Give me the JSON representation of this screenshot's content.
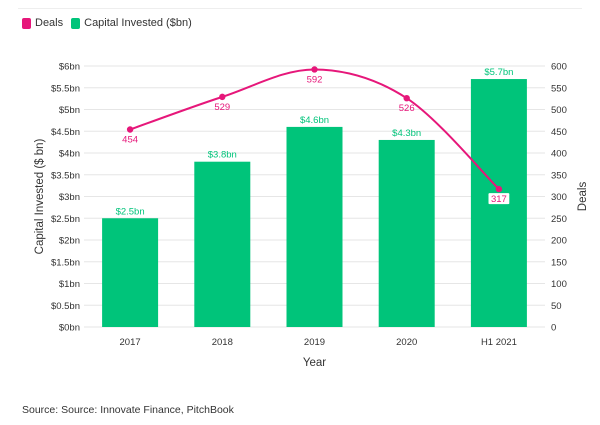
{
  "legend": {
    "deals_label": "Deals",
    "capital_label": "Capital Invested ($bn)"
  },
  "colors": {
    "deals": "#e6177a",
    "capital": "#00c47a",
    "grid": "#e6e6e6",
    "axis_text": "#333333"
  },
  "source": "Source: Source: Innovate Finance, PitchBook",
  "chart_data": {
    "type": "bar",
    "categories": [
      "2017",
      "2018",
      "2019",
      "2020",
      "H1 2021"
    ],
    "xlabel": "Year",
    "series": [
      {
        "name": "Capital Invested ($bn)",
        "type": "bar",
        "axis": "left",
        "values": [
          2.5,
          3.8,
          4.6,
          4.3,
          5.7
        ],
        "labels": [
          "$2.5bn",
          "$3.8bn",
          "$4.6bn",
          "$4.3bn",
          "$5.7bn"
        ]
      },
      {
        "name": "Deals",
        "type": "line",
        "axis": "right",
        "values": [
          454,
          529,
          592,
          526,
          317
        ],
        "labels": [
          "454",
          "529",
          "592",
          "526",
          "317"
        ]
      }
    ],
    "y_left": {
      "label": "Capital Invested ($ bn)",
      "range": [
        0,
        6
      ],
      "ticks": [
        0,
        0.5,
        1,
        1.5,
        2,
        2.5,
        3,
        3.5,
        4,
        4.5,
        5,
        5.5,
        6
      ],
      "tick_labels": [
        "$0bn",
        "$0.5bn",
        "$1bn",
        "$1.5bn",
        "$2bn",
        "$2.5bn",
        "$3bn",
        "$3.5bn",
        "$4bn",
        "$4.5bn",
        "$5bn",
        "$5.5bn",
        "$6bn"
      ]
    },
    "y_right": {
      "label": "Deals",
      "range": [
        0,
        600
      ],
      "ticks": [
        0,
        50,
        100,
        150,
        200,
        250,
        300,
        350,
        400,
        450,
        500,
        550,
        600
      ],
      "tick_labels": [
        "0",
        "50",
        "100",
        "150",
        "200",
        "250",
        "300",
        "350",
        "400",
        "450",
        "500",
        "550",
        "600"
      ]
    },
    "grid": true,
    "legend_position": "top-left"
  }
}
